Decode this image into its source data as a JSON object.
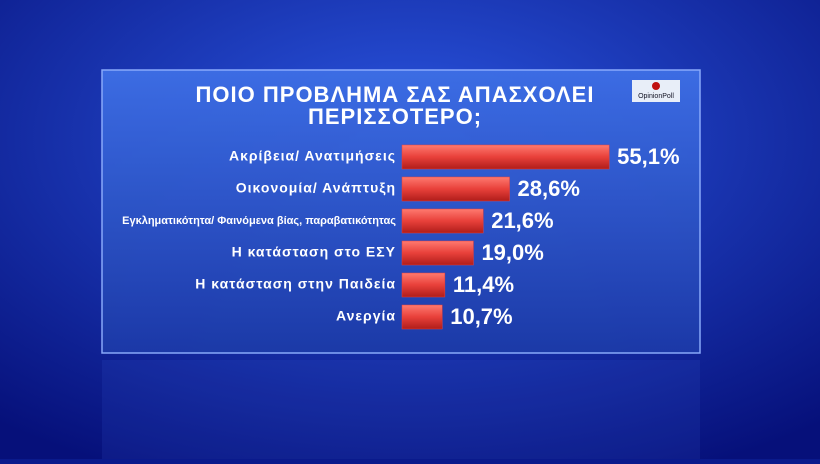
{
  "chart_data": {
    "type": "hbar",
    "title": [
      "ΠΟΙΟ ΠΡΟΒΛΗΜΑ ΣΑΣ ΑΠΑΣΧΟΛΕΙ",
      "ΠΕΡΙΣΣΟΤΕΡΟ;"
    ],
    "logo": "OpinionPoll",
    "categories": [
      "Ακρίβεια/ Ανατιμήσεις",
      "Οικονομία/ Ανάπτυξη",
      "Εγκληματικότητα/ Φαινόμενα βίας, παραβατικότητας",
      "Η κατάσταση στο ΕΣΥ",
      "Η κατάσταση στην Παιδεία",
      "Ανεργία"
    ],
    "values": [
      55.1,
      28.6,
      21.6,
      19.0,
      11.4,
      10.7
    ],
    "value_labels": [
      "55,1%",
      "28,6%",
      "21,6%",
      "19,0%",
      "11,4%",
      "10,7%"
    ],
    "color": "#e8403a"
  }
}
